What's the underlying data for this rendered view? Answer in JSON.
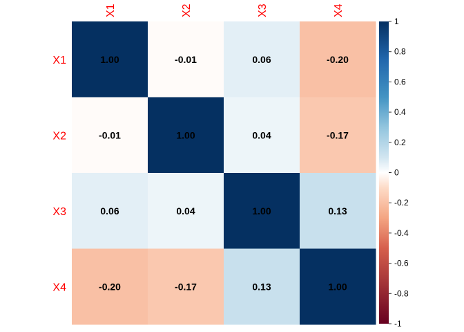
{
  "chart_data": {
    "type": "heatmap",
    "title": "",
    "rows": [
      "X1",
      "X2",
      "X3",
      "X4"
    ],
    "columns": [
      "X1",
      "X2",
      "X3",
      "X4"
    ],
    "values": [
      [
        1.0,
        -0.01,
        0.06,
        -0.2
      ],
      [
        -0.01,
        1.0,
        0.04,
        -0.17
      ],
      [
        0.06,
        0.04,
        1.0,
        0.13
      ],
      [
        -0.2,
        -0.17,
        0.13,
        1.0
      ]
    ],
    "value_labels": [
      [
        "1.00",
        "-0.01",
        "0.06",
        "-0.20"
      ],
      [
        "-0.01",
        "1.00",
        "0.04",
        "-0.17"
      ],
      [
        "0.06",
        "0.04",
        "1.00",
        "0.13"
      ],
      [
        "-0.20",
        "-0.17",
        "0.13",
        "1.00"
      ]
    ],
    "colorbar": {
      "range": [
        -1,
        1
      ],
      "ticks": [
        1,
        0.8,
        0.6,
        0.4,
        0.2,
        0,
        -0.2,
        -0.4,
        -0.6,
        -0.8,
        -1
      ],
      "tick_labels": [
        "1",
        "0.8",
        "0.6",
        "0.4",
        "0.2",
        "0",
        "-0.2",
        "-0.4",
        "-0.6",
        "-0.8",
        "-1"
      ],
      "palette": {
        "neg_dark": "#67001f",
        "neg_mid": "#d6604d",
        "neutral": "#ffffff",
        "pos_mid": "#4393c3",
        "pos_dark": "#053061"
      },
      "position": "right"
    },
    "label_color": "#ff0000",
    "value_text_color": "#000000"
  }
}
